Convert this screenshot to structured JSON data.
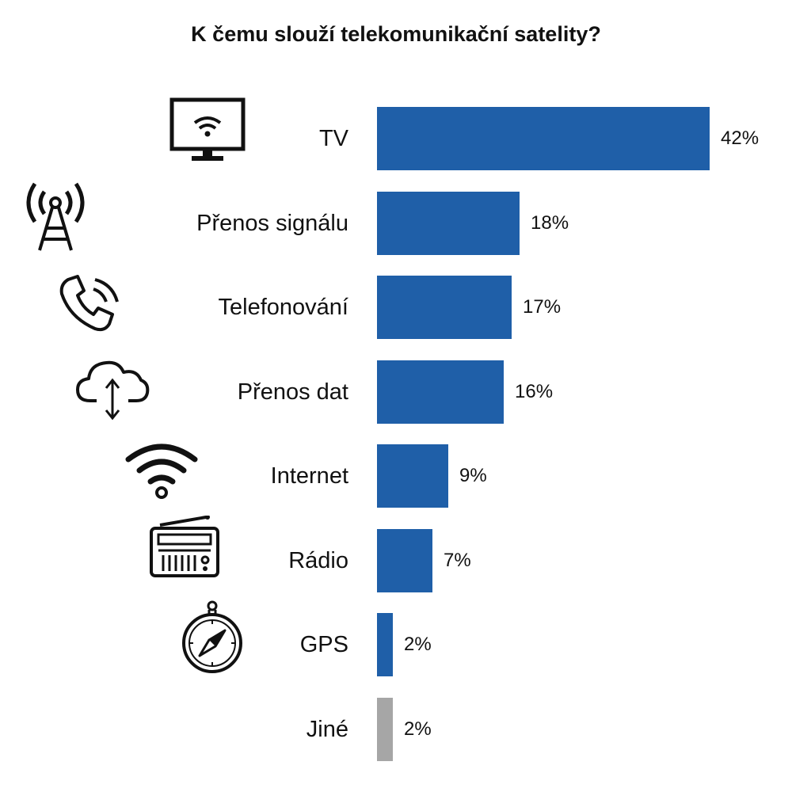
{
  "colors": {
    "primary": "#1f5fa8",
    "other": "#a6a6a6",
    "ink": "#111111"
  },
  "chart_data": {
    "type": "bar",
    "orientation": "horizontal",
    "title": "K čemu slouží telekomunikační satelity?",
    "xlabel": "",
    "ylabel": "",
    "xlim": [
      0,
      42
    ],
    "grid": false,
    "legend": "none",
    "categories": [
      "TV",
      "Přenos signálu",
      "Telefonování",
      "Přenos dat",
      "Internet",
      "Rádio",
      "GPS",
      "Jiné"
    ],
    "values": [
      42,
      18,
      17,
      16,
      9,
      7,
      2,
      2
    ],
    "value_labels": [
      "42%",
      "18%",
      "17%",
      "16%",
      "9%",
      "7%",
      "2%",
      "2%"
    ],
    "icons": [
      "tv-wifi-icon",
      "antenna-tower-icon",
      "phone-icon",
      "cloud-transfer-icon",
      "wifi-icon",
      "radio-icon",
      "compass-icon",
      ""
    ],
    "bar_colors": [
      "primary",
      "primary",
      "primary",
      "primary",
      "primary",
      "primary",
      "primary",
      "other"
    ]
  }
}
